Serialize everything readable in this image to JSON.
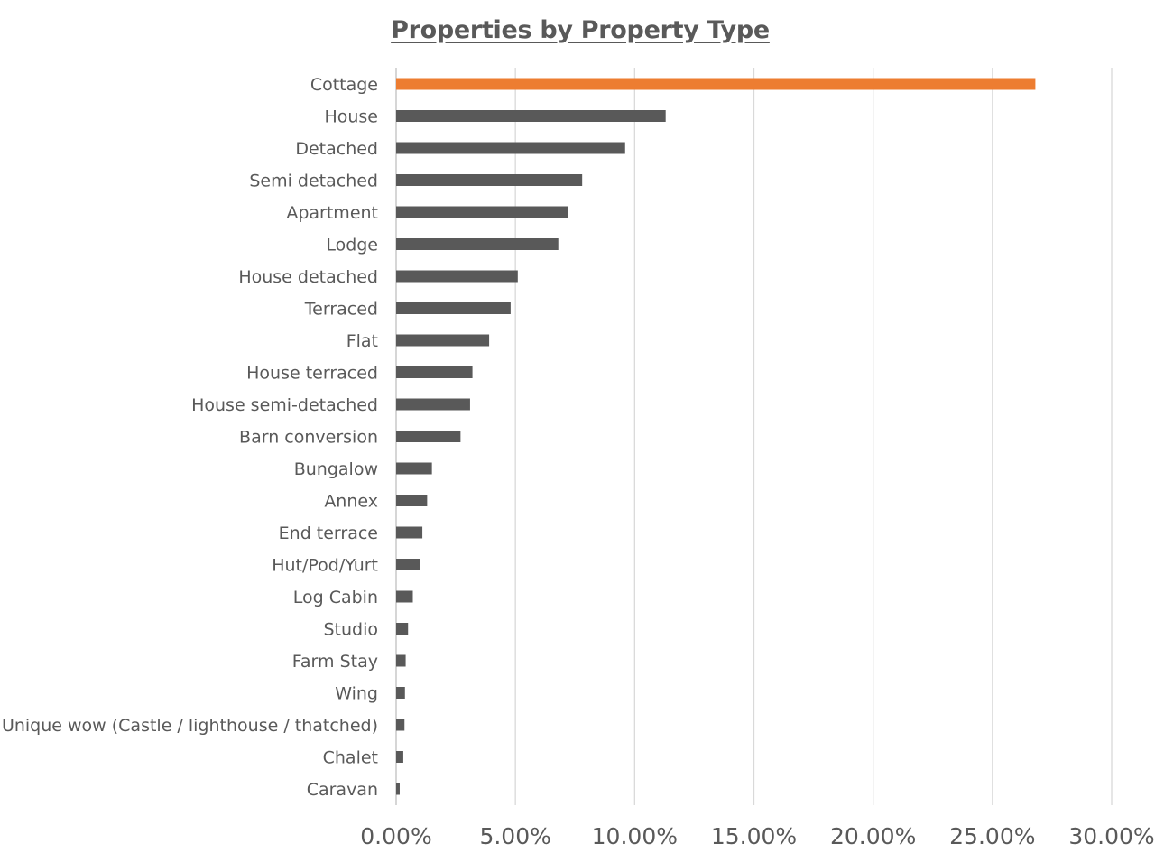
{
  "chart_data": {
    "type": "bar",
    "orientation": "horizontal",
    "title": "Properties by Property Type",
    "xlabel": "",
    "ylabel": "",
    "xlim": [
      0,
      0.3
    ],
    "x_ticks": [
      "0.00%",
      "5.00%",
      "10.00%",
      "15.00%",
      "20.00%",
      "25.00%",
      "30.00%"
    ],
    "grid": "vertical",
    "legend": "none",
    "colors": {
      "highlight": "#ed7d31",
      "default": "#595959",
      "grid": "#d9d9d9",
      "text": "#595959"
    },
    "categories": [
      "Cottage",
      "House",
      "Detached",
      "Semi detached",
      "Apartment",
      "Lodge",
      "House detached",
      "Terraced",
      "Flat",
      "House terraced",
      "House semi-detached",
      "Barn conversion",
      "Bungalow",
      "Annex",
      "End terrace",
      "Hut/Pod/Yurt",
      "Log Cabin",
      "Studio",
      "Farm Stay",
      "Wing",
      "Unique wow (Castle / lighthouse / thatched)",
      "Chalet",
      "Caravan"
    ],
    "values": [
      0.268,
      0.113,
      0.096,
      0.078,
      0.072,
      0.068,
      0.051,
      0.048,
      0.039,
      0.032,
      0.031,
      0.027,
      0.015,
      0.013,
      0.011,
      0.01,
      0.007,
      0.005,
      0.004,
      0.0037,
      0.0035,
      0.003,
      0.0015
    ],
    "highlight_index": 0
  }
}
